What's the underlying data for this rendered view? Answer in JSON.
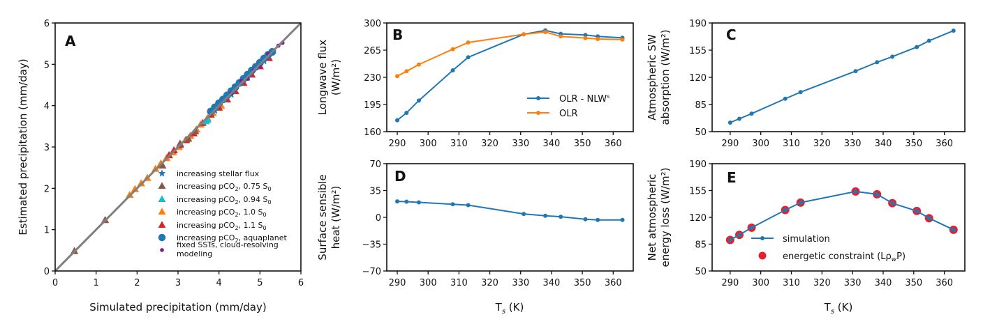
{
  "figure": {
    "colors": {
      "blue": "#1f77b4",
      "orange": "#ff7f0e",
      "brown": "#8c564b",
      "cyan": "#17becf",
      "red": "#d62728",
      "purple": "#7f1f8a",
      "identity_line": "#808080",
      "constraint_red": "#e8202e"
    }
  },
  "chart_data": [
    {
      "id": "A",
      "panel_label": "A",
      "type": "scatter",
      "xlabel": "Simulated precipitation (mm/day)",
      "ylabel": "Estimated precipitation (mm/day)",
      "xlim": [
        0,
        6
      ],
      "ylim": [
        0,
        6
      ],
      "xticks": [
        0,
        1,
        2,
        3,
        4,
        5,
        6
      ],
      "yticks": [
        0,
        1,
        2,
        3,
        4,
        5,
        6
      ],
      "grid": false,
      "legend_position": "lower-right",
      "reference_line": {
        "name": "1:1 line",
        "x": [
          0,
          6
        ],
        "y": [
          0,
          6
        ]
      },
      "series": [
        {
          "name": "increasing stellar flux",
          "marker": "star",
          "color": "#1f77b4",
          "x": [
            3.9,
            4.3,
            4.7,
            5.1
          ],
          "y": [
            3.88,
            4.27,
            4.68,
            5.08
          ]
        },
        {
          "name": "increasing pCO₂, 0.75 S₀",
          "marker": "triangle",
          "color": "#8c564b",
          "x": [
            0.47,
            1.22,
            2.62,
            3.05,
            3.25,
            3.42
          ],
          "y": [
            0.48,
            1.23,
            2.55,
            3.08,
            3.2,
            3.38
          ]
        },
        {
          "name": "increasing pCO₂, 0.94 S₀",
          "marker": "triangle",
          "color": "#17becf",
          "x": [
            3.68,
            3.72
          ],
          "y": [
            3.62,
            3.66
          ]
        },
        {
          "name": "increasing pCO₂, 1.0 S₀",
          "marker": "triangle",
          "color": "#ff7f0e",
          "x": [
            1.82,
            1.95,
            2.1,
            2.25,
            2.45,
            2.58,
            2.72,
            2.88,
            3.02,
            3.18,
            3.3,
            3.45,
            3.55,
            3.72,
            3.85,
            4.05
          ],
          "y": [
            1.84,
            1.98,
            2.12,
            2.25,
            2.47,
            2.6,
            2.73,
            2.87,
            3.0,
            3.16,
            3.27,
            3.42,
            3.54,
            3.7,
            3.82,
            4.0
          ]
        },
        {
          "name": "increasing pCO₂, 1.1 S₀",
          "marker": "triangle",
          "color": "#d62728",
          "x": [
            2.78,
            2.9,
            3.05,
            3.2,
            3.38,
            3.6,
            3.8,
            4.0,
            4.2,
            4.4,
            4.6,
            4.8,
            5.0,
            5.22
          ],
          "y": [
            2.8,
            2.92,
            3.05,
            3.17,
            3.33,
            3.58,
            3.78,
            3.95,
            4.15,
            4.35,
            4.55,
            4.75,
            4.95,
            5.15
          ]
        },
        {
          "name": "increasing pCO₂, aquaplanet",
          "marker": "circle",
          "color": "#1f77b4",
          "x": [
            3.8,
            3.9,
            4.0,
            4.1,
            4.2,
            4.3,
            4.4,
            4.5,
            4.6,
            4.7,
            4.8,
            4.9,
            5.0,
            5.1,
            5.2,
            5.3
          ],
          "y": [
            3.86,
            3.96,
            4.06,
            4.15,
            4.25,
            4.35,
            4.45,
            4.55,
            4.65,
            4.75,
            4.85,
            4.94,
            5.04,
            5.14,
            5.23,
            5.3
          ]
        },
        {
          "name": "fixed SSTs, cloud-resolving modeling",
          "marker": "small-circle",
          "color": "#7f1f8a",
          "x": [
            4.3,
            4.55,
            4.7,
            4.85,
            5.0,
            5.2,
            5.45,
            5.55
          ],
          "y": [
            4.3,
            4.6,
            4.65,
            4.85,
            4.95,
            5.25,
            5.45,
            5.52
          ]
        }
      ],
      "legend": [
        {
          "label": "increasing stellar flux",
          "marker": "star",
          "color": "#1f77b4"
        },
        {
          "label_main": "increasing pCO",
          "sub1": "2",
          "label_mid": ", 0.75 S",
          "sub2": "0",
          "marker": "triangle",
          "color": "#8c564b"
        },
        {
          "label_main": "increasing pCO",
          "sub1": "2",
          "label_mid": ", 0.94 S",
          "sub2": "0",
          "marker": "triangle",
          "color": "#17becf"
        },
        {
          "label_main": "increasing pCO",
          "sub1": "2",
          "label_mid": ", 1.0 S",
          "sub2": "0",
          "marker": "triangle",
          "color": "#ff7f0e"
        },
        {
          "label_main": "increasing pCO",
          "sub1": "2",
          "label_mid": ", 1.1 S",
          "sub2": "0",
          "marker": "triangle",
          "color": "#d62728"
        },
        {
          "label_main": "increasing pCO",
          "sub1": "2",
          "label_mid": ", aquaplanet",
          "sub2": "",
          "marker": "circle",
          "color": "#1f77b4"
        },
        {
          "label_line1": "fixed SSTs, cloud-resolving",
          "label_line2": " modeling",
          "marker": "small-circle",
          "color": "#7f1f8a"
        }
      ]
    },
    {
      "id": "B",
      "panel_label": "B",
      "type": "line",
      "xlabel": "",
      "ylabel_line1": "Longwave flux",
      "ylabel_line2": "(W/m²)",
      "xlim": [
        286.6,
        366.5
      ],
      "ylim": [
        160,
        300
      ],
      "xticks": [
        290,
        300,
        310,
        320,
        330,
        340,
        350,
        360
      ],
      "yticks": [
        160,
        195,
        230,
        265,
        300
      ],
      "grid": false,
      "legend_position": "lower-right",
      "x": [
        290,
        293,
        297,
        308,
        313,
        331,
        338,
        343,
        351,
        355,
        363
      ],
      "series": [
        {
          "name": "OLR - NLWˢ",
          "color": "#1f77b4",
          "values": [
            174.7,
            184.2,
            200.1,
            239.0,
            255.8,
            285.4,
            290.5,
            286.0,
            284.5,
            282.7,
            280.9
          ]
        },
        {
          "name": "OLR",
          "color": "#ff7f0e",
          "values": [
            231.5,
            237.8,
            246.5,
            266.2,
            274.9,
            285.4,
            288.3,
            282.7,
            280.6,
            279.4,
            278.6
          ]
        }
      ],
      "legend": [
        {
          "label": "OLR - NLW",
          "sup": "s",
          "color": "#1f77b4"
        },
        {
          "label": "OLR",
          "sup": "",
          "color": "#ff7f0e"
        }
      ]
    },
    {
      "id": "C",
      "panel_label": "C",
      "type": "line",
      "xlabel": "",
      "ylabel_line1": "Atmospheric SW",
      "ylabel_line2": "absorption (W/m²)",
      "xlim": [
        284.1,
        366.7
      ],
      "ylim": [
        50,
        190
      ],
      "xticks": [
        290,
        300,
        310,
        320,
        330,
        340,
        350,
        360
      ],
      "yticks": [
        50,
        85,
        120,
        155,
        190
      ],
      "grid": false,
      "x": [
        290,
        293,
        297,
        308,
        313,
        331,
        338,
        343,
        351,
        355,
        363
      ],
      "series": [
        {
          "name": "Atmospheric SW absorption",
          "color": "#1f77b4",
          "values": [
            61.7,
            66.6,
            73.2,
            92.4,
            100.9,
            128.0,
            139.4,
            146.6,
            159.0,
            167.1,
            180.1
          ]
        }
      ]
    },
    {
      "id": "D",
      "panel_label": "D",
      "type": "line",
      "xlabel_main": "T",
      "xlabel_sub": "s",
      "xlabel_unit": " (K)",
      "ylabel_line1": "Surface sensible",
      "ylabel_line2": "heat (W/m²)",
      "xlim": [
        286.6,
        366.5
      ],
      "ylim": [
        -70,
        70
      ],
      "xticks": [
        290,
        300,
        310,
        320,
        330,
        340,
        350,
        360
      ],
      "yticks": [
        -70,
        -35,
        0,
        35,
        70
      ],
      "ytick_labels": [
        "−70",
        "−35",
        "0",
        "35",
        "70"
      ],
      "grid": false,
      "x": [
        290,
        293,
        297,
        308,
        313,
        331,
        338,
        343,
        351,
        355,
        363
      ],
      "series": [
        {
          "name": "Surface sensible heat",
          "color": "#1f77b4",
          "values": [
            20.8,
            20.4,
            19.5,
            17.1,
            15.9,
            4.4,
            2.0,
            0.8,
            -2.5,
            -3.4,
            -3.4
          ]
        }
      ]
    },
    {
      "id": "E",
      "panel_label": "E",
      "type": "line",
      "xlabel_main": "T",
      "xlabel_sub": "s",
      "xlabel_unit": " (K)",
      "ylabel_line1": "Net atmospheric",
      "ylabel_line2": "energy loss (W/m²)",
      "xlim": [
        284.1,
        366.7
      ],
      "ylim": [
        50,
        190
      ],
      "xticks": [
        290,
        300,
        310,
        320,
        330,
        340,
        350,
        360
      ],
      "yticks": [
        50,
        85,
        120,
        155,
        190
      ],
      "grid": false,
      "legend_position": "lower-center",
      "x": [
        290,
        293,
        297,
        308,
        313,
        331,
        338,
        343,
        351,
        355,
        363
      ],
      "series": [
        {
          "name": "simulation",
          "style": "line-marker",
          "color": "#1f77b4",
          "values": [
            90.5,
            97.2,
            106.5,
            129.5,
            139.2,
            153.7,
            150.1,
            138.5,
            128.3,
            118.9,
            103.8
          ]
        },
        {
          "name": "energetic constraint (LρwP)",
          "style": "scatter",
          "color": "#e8202e",
          "values": [
            90.5,
            97.2,
            106.5,
            129.5,
            139.2,
            153.7,
            150.1,
            138.5,
            128.3,
            118.9,
            103.8
          ]
        }
      ],
      "legend": [
        {
          "label": "simulation",
          "color": "#1f77b4",
          "style": "line-marker"
        },
        {
          "label_pre": "energetic constraint (Lρ",
          "label_sub": "w",
          "label_post": "P)",
          "color": "#e8202e",
          "style": "scatter"
        }
      ]
    }
  ]
}
